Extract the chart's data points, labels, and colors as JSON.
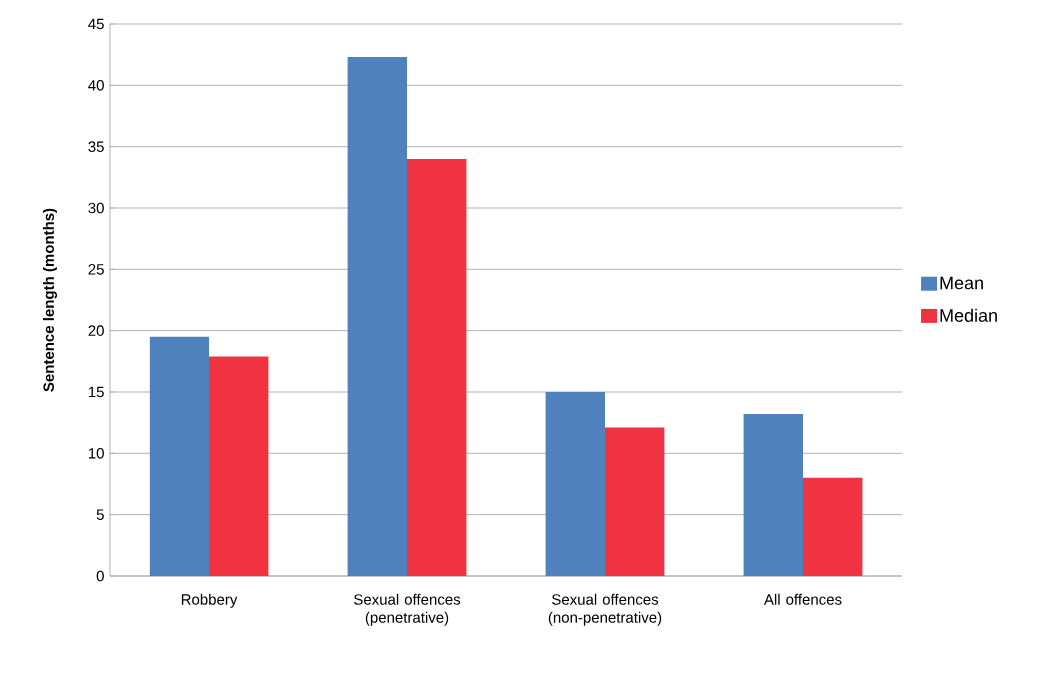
{
  "chart_data": {
    "type": "bar",
    "ylabel": "Sentence length (months)",
    "categories": [
      "Robbery",
      "Sexual offences (penetrative)",
      "Sexual offences (non-penetrative)",
      "All offences"
    ],
    "series": [
      {
        "name": "Mean",
        "color": "#4f81bd",
        "values": [
          19.5,
          42.3,
          15,
          13.2
        ]
      },
      {
        "name": "Median",
        "color": "#ef3340",
        "values": [
          17.9,
          34.0,
          12.1,
          8.0
        ]
      }
    ],
    "ylim": [
      0,
      45
    ],
    "yticks": [
      0,
      5,
      10,
      15,
      20,
      25,
      30,
      35,
      40,
      45
    ],
    "grid": "y",
    "legend": "right"
  }
}
